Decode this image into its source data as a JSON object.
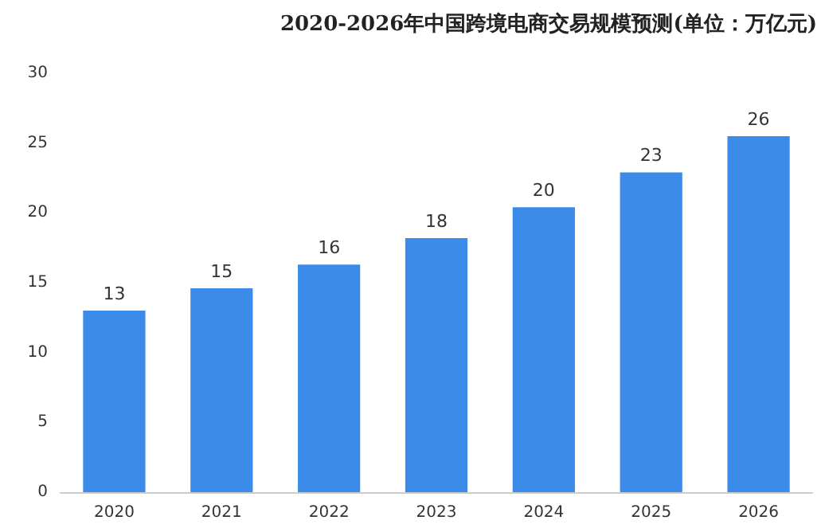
{
  "chart_data": {
    "type": "bar",
    "title": "2020-2026年中国跨境电商交易规模预测(单位：万亿元)",
    "categories": [
      "2020",
      "2021",
      "2022",
      "2023",
      "2024",
      "2025",
      "2026"
    ],
    "values": [
      13,
      14.6,
      16.3,
      18.2,
      20.4,
      22.9,
      25.5
    ],
    "value_labels": [
      "13",
      "15",
      "16",
      "18",
      "20",
      "23",
      "26"
    ],
    "color": "#3d8be8",
    "ylim": [
      0,
      30
    ],
    "yticks": [
      0,
      5,
      10,
      15,
      20,
      25,
      30
    ]
  }
}
